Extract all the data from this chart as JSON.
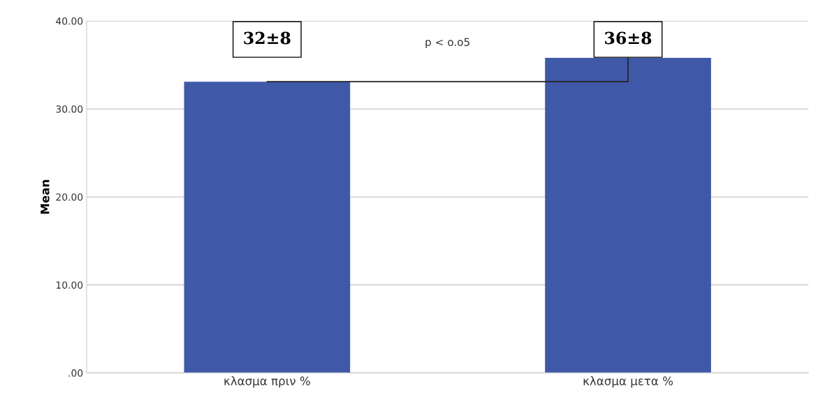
{
  "chart_data": {
    "type": "bar",
    "ylabel": "Mean",
    "categories": [
      "κλασμα πριν %",
      "κλασμα μετα %"
    ],
    "values": [
      33.1,
      35.8
    ],
    "color": "#3f59a8",
    "ylim": [
      0,
      40
    ],
    "yticks": [
      {
        "value": 0,
        "label": ".00"
      },
      {
        "value": 10,
        "label": "10.00"
      },
      {
        "value": 20,
        "label": "20.00"
      },
      {
        "value": 30,
        "label": "30.00"
      },
      {
        "value": 40,
        "label": "40.00"
      }
    ],
    "grid": "y",
    "annotations": [
      "32±8",
      "36±8",
      "p < o.o5"
    ]
  }
}
